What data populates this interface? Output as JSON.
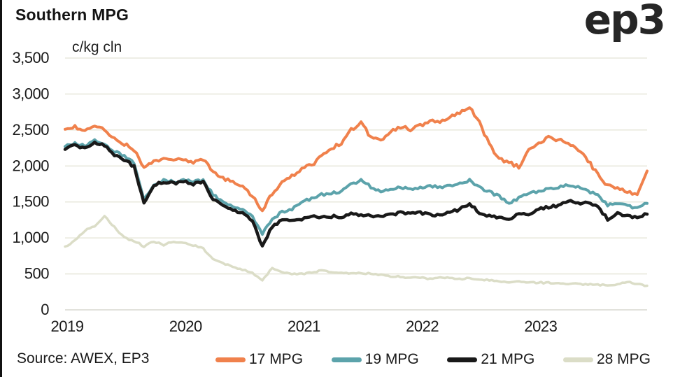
{
  "header": {
    "title": "Southern MPG",
    "logo_text": "ep3"
  },
  "footer": {
    "source": "Source: AWEX, EP3"
  },
  "colors": {
    "series_17": "#F0814C",
    "series_19": "#5CA3AB",
    "series_21": "#191919",
    "series_28": "#DBDDC7",
    "gridline": "#E9E9DE",
    "baseline": "#D8D8D0",
    "text": "#1a1a1a"
  },
  "chart_data": {
    "type": "line",
    "title": "Southern MPG",
    "unit_label": "c/kg cln",
    "xlabel": "",
    "ylabel": "c/kg cln",
    "ylim": [
      0,
      3500
    ],
    "y_tick_step": 500,
    "y_tick_labels": [
      "0",
      "500",
      "1,000",
      "1,500",
      "2,000",
      "2,500",
      "3,000",
      "3,500"
    ],
    "x_ticks": [
      "2019",
      "2020",
      "2021",
      "2022",
      "2023"
    ],
    "x_resolution": "monthly Jan-2019 to Dec-2023",
    "grid": "horizontal only",
    "legend_position": "bottom",
    "series": [
      {
        "name": "17 MPG",
        "color": "#F0814C",
        "width": 4,
        "values": [
          2510,
          2545,
          2480,
          2550,
          2500,
          2400,
          2300,
          2230,
          1960,
          2060,
          2100,
          2080,
          2090,
          2050,
          2100,
          1900,
          1830,
          1780,
          1720,
          1580,
          1390,
          1620,
          1760,
          1860,
          1960,
          2010,
          2150,
          2250,
          2320,
          2500,
          2600,
          2400,
          2360,
          2480,
          2540,
          2510,
          2560,
          2620,
          2600,
          2680,
          2740,
          2830,
          2600,
          2300,
          2100,
          2050,
          1980,
          2250,
          2300,
          2400,
          2360,
          2320,
          2230,
          2080,
          1880,
          1730,
          1700,
          1640,
          1620,
          1930
        ]
      },
      {
        "name": "19 MPG",
        "color": "#5CA3AB",
        "width": 4,
        "values": [
          2270,
          2320,
          2280,
          2350,
          2300,
          2200,
          2140,
          2040,
          1520,
          1740,
          1800,
          1780,
          1800,
          1780,
          1800,
          1600,
          1500,
          1450,
          1400,
          1290,
          1060,
          1260,
          1360,
          1400,
          1500,
          1550,
          1600,
          1620,
          1650,
          1750,
          1800,
          1710,
          1650,
          1680,
          1700,
          1680,
          1700,
          1720,
          1700,
          1720,
          1750,
          1800,
          1700,
          1640,
          1580,
          1470,
          1560,
          1610,
          1650,
          1690,
          1700,
          1740,
          1700,
          1650,
          1600,
          1450,
          1490,
          1440,
          1420,
          1480
        ]
      },
      {
        "name": "21 MPG",
        "color": "#191919",
        "width": 4.5,
        "values": [
          2230,
          2290,
          2250,
          2330,
          2280,
          2150,
          2090,
          1990,
          1480,
          1730,
          1780,
          1760,
          1780,
          1750,
          1780,
          1540,
          1440,
          1390,
          1340,
          1240,
          880,
          1160,
          1250,
          1230,
          1260,
          1300,
          1280,
          1300,
          1290,
          1350,
          1320,
          1300,
          1290,
          1320,
          1350,
          1330,
          1350,
          1320,
          1310,
          1350,
          1400,
          1480,
          1350,
          1300,
          1280,
          1260,
          1350,
          1310,
          1400,
          1430,
          1450,
          1520,
          1480,
          1500,
          1430,
          1260,
          1350,
          1300,
          1290,
          1330
        ]
      },
      {
        "name": "28 MPG",
        "color": "#DBDDC7",
        "width": 3.5,
        "values": [
          880,
          960,
          1100,
          1160,
          1300,
          1150,
          1000,
          960,
          880,
          950,
          900,
          950,
          940,
          900,
          850,
          700,
          650,
          600,
          560,
          510,
          410,
          590,
          520,
          500,
          500,
          520,
          545,
          530,
          515,
          500,
          515,
          500,
          485,
          470,
          460,
          450,
          445,
          435,
          450,
          440,
          430,
          440,
          420,
          410,
          400,
          390,
          390,
          380,
          380,
          375,
          370,
          363,
          358,
          352,
          348,
          344,
          352,
          395,
          360,
          335
        ]
      }
    ]
  }
}
